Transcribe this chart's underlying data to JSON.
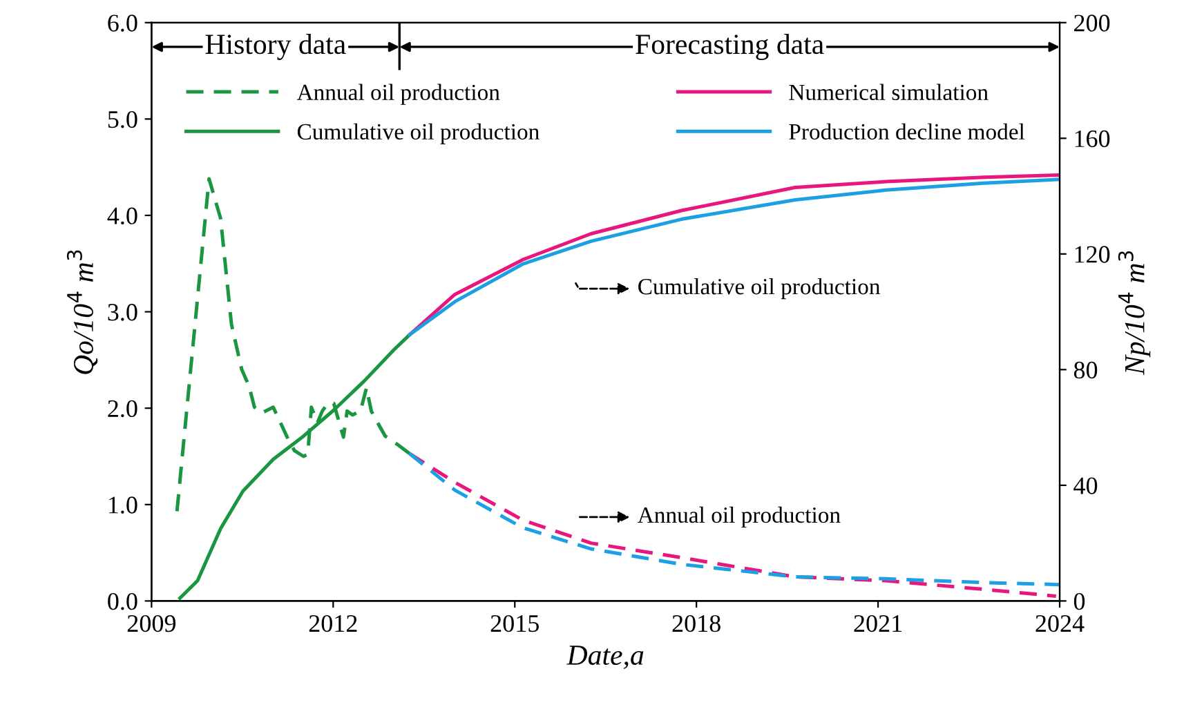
{
  "chart_data": {
    "type": "line",
    "xlabel": "Date,a",
    "ylabel": "Qo/10$^{4}$ m$^{3}$",
    "y2label": "Np/10$^{4}$ m$^{3}$",
    "xlim": [
      2009,
      2024
    ],
    "xticks": [
      2009,
      2012,
      2015,
      2018,
      2021,
      2024
    ],
    "ylim": [
      0,
      6
    ],
    "yticks": [
      {
        "value": 0,
        "label": "0.0"
      },
      {
        "value": 1,
        "label": "1.0"
      },
      {
        "value": 2,
        "label": "2.0"
      },
      {
        "value": 3,
        "label": "3.0"
      },
      {
        "value": 4,
        "label": "4.0"
      },
      {
        "value": 5,
        "label": "5.0"
      },
      {
        "value": 6,
        "label": "6.0"
      }
    ],
    "y2lim": [
      0,
      200
    ],
    "y2ticks": [
      0,
      40,
      80,
      120,
      160,
      200
    ],
    "grid": false,
    "legend": "top",
    "marker": "none",
    "series": [
      {
        "name": "Annual oil production",
        "color": "#1a9641",
        "line_style": "dashed",
        "x": [
          2009.42,
          2009.95,
          2010.14,
          2010.32,
          2010.49,
          2010.61,
          2010.7,
          2010.82,
          2011.01,
          2011.24,
          2011.36,
          2011.51,
          2011.58,
          2011.64,
          2011.74,
          2011.82,
          2011.91,
          2012.01,
          2012.1,
          2012.17,
          2012.23,
          2012.32,
          2012.45,
          2012.55,
          2012.63,
          2012.76,
          2012.86,
          2013.07,
          2013.26
        ],
        "values": [
          0.93,
          4.38,
          3.97,
          2.87,
          2.4,
          2.23,
          2.01,
          1.95,
          2.01,
          1.7,
          1.56,
          1.5,
          1.52,
          2.01,
          1.85,
          1.97,
          2.05,
          2.05,
          1.85,
          1.7,
          1.97,
          1.93,
          1.97,
          2.21,
          1.97,
          1.82,
          1.71,
          1.62,
          1.53
        ]
      },
      {
        "name": "Cumulative oil production",
        "color": "#1a9641",
        "line_style": "solid",
        "axis": "y2",
        "x": [
          2009.47,
          2009.76,
          2010.14,
          2010.51,
          2011.01,
          2011.51,
          2012.01,
          2012.51,
          2013.01,
          2013.26
        ],
        "values": [
          1,
          7,
          25,
          38,
          49,
          57,
          66,
          76,
          87,
          92
        ]
      },
      {
        "name": "Numerical simulation",
        "color": "#e8177d",
        "line_style": "solid",
        "axis": "y2",
        "x": [
          2013.26,
          2014.01,
          2015.13,
          2016.26,
          2017.75,
          2019.63,
          2021.13,
          2022.75,
          2024
        ],
        "values": [
          92,
          106,
          118,
          127,
          135,
          143,
          145,
          146.5,
          147.3
        ]
      },
      {
        "name": "Production decline model",
        "color": "#1ca0e3",
        "line_style": "solid",
        "axis": "y2",
        "x": [
          2013.26,
          2014.01,
          2015.13,
          2016.26,
          2017.75,
          2019.63,
          2021.13,
          2022.75,
          2024
        ],
        "values": [
          92,
          103.5,
          116.5,
          124.4,
          132,
          138.7,
          142.1,
          144.5,
          145.8
        ]
      },
      {
        "color": "#e8177d",
        "line_style": "dashed",
        "x": [
          2013.26,
          2014.01,
          2015.13,
          2016.26,
          2017.75,
          2019.63,
          2021.13,
          2022.75,
          2023.94
        ],
        "values": [
          1.53,
          1.23,
          0.84,
          0.6,
          0.45,
          0.25,
          0.21,
          0.12,
          0.05
        ]
      },
      {
        "color": "#1ca0e3",
        "line_style": "dashed",
        "x": [
          2013.26,
          2014.01,
          2015.13,
          2016.26,
          2017.75,
          2019.63,
          2021.13,
          2022.75,
          2024
        ],
        "values": [
          1.53,
          1.15,
          0.76,
          0.54,
          0.38,
          0.25,
          0.23,
          0.19,
          0.17
        ]
      }
    ],
    "annotations": [
      "History data",
      "Forecasting data",
      "Cumulative oil production",
      "Annual oil production"
    ]
  }
}
